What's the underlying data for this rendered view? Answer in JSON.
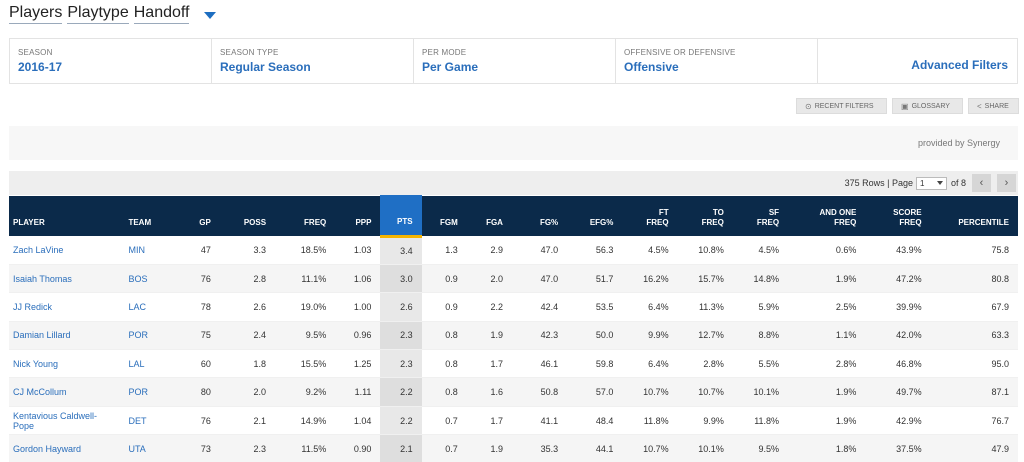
{
  "title": {
    "words": [
      "Players",
      "Playtype",
      "Handoff"
    ]
  },
  "filters": [
    {
      "label": "SEASON",
      "value": "2016-17"
    },
    {
      "label": "SEASON TYPE",
      "value": "Regular Season"
    },
    {
      "label": "PER MODE",
      "value": "Per Game"
    },
    {
      "label": "OFFENSIVE OR DEFENSIVE",
      "value": "Offensive"
    }
  ],
  "advanced_filters": "Advanced Filters",
  "actions": {
    "recent": "RECENT FILTERS",
    "glossary": "GLOSSARY",
    "share": "SHARE"
  },
  "provider": "provided by Synergy",
  "pager": {
    "rows_text": "375 Rows | Page",
    "page": "1",
    "of_text": "of 8",
    "prev": "‹",
    "next": "›"
  },
  "table": {
    "columns": [
      [
        "PLAYER"
      ],
      [
        "TEAM"
      ],
      [
        "GP"
      ],
      [
        "POSS"
      ],
      [
        "FREQ"
      ],
      [
        "PPP"
      ],
      [
        "PTS"
      ],
      [
        "FGM"
      ],
      [
        "FGA"
      ],
      [
        "FG%"
      ],
      [
        "EFG%"
      ],
      [
        "FT",
        "FREQ"
      ],
      [
        "TO",
        "FREQ"
      ],
      [
        "SF",
        "FREQ"
      ],
      [
        "AND ONE",
        "FREQ"
      ],
      [
        "SCORE",
        "FREQ"
      ],
      [
        "PERCENTILE"
      ]
    ],
    "rows": [
      [
        "Zach LaVine",
        "MIN",
        "47",
        "3.3",
        "18.5%",
        "1.03",
        "3.4",
        "1.3",
        "2.9",
        "47.0",
        "56.3",
        "4.5%",
        "10.8%",
        "4.5%",
        "0.6%",
        "43.9%",
        "75.8"
      ],
      [
        "Isaiah Thomas",
        "BOS",
        "76",
        "2.8",
        "11.1%",
        "1.06",
        "3.0",
        "0.9",
        "2.0",
        "47.0",
        "51.7",
        "16.2%",
        "15.7%",
        "14.8%",
        "1.9%",
        "47.2%",
        "80.8"
      ],
      [
        "JJ Redick",
        "LAC",
        "78",
        "2.6",
        "19.0%",
        "1.00",
        "2.6",
        "0.9",
        "2.2",
        "42.4",
        "53.5",
        "6.4%",
        "11.3%",
        "5.9%",
        "2.5%",
        "39.9%",
        "67.9"
      ],
      [
        "Damian Lillard",
        "POR",
        "75",
        "2.4",
        "9.5%",
        "0.96",
        "2.3",
        "0.8",
        "1.9",
        "42.3",
        "50.0",
        "9.9%",
        "12.7%",
        "8.8%",
        "1.1%",
        "42.0%",
        "63.3"
      ],
      [
        "Nick Young",
        "LAL",
        "60",
        "1.8",
        "15.5%",
        "1.25",
        "2.3",
        "0.8",
        "1.7",
        "46.1",
        "59.8",
        "6.4%",
        "2.8%",
        "5.5%",
        "2.8%",
        "46.8%",
        "95.0"
      ],
      [
        "CJ McCollum",
        "POR",
        "80",
        "2.0",
        "9.2%",
        "1.11",
        "2.2",
        "0.8",
        "1.6",
        "50.8",
        "57.0",
        "10.7%",
        "10.7%",
        "10.1%",
        "1.9%",
        "49.7%",
        "87.1"
      ],
      [
        "Kentavious Caldwell-Pope",
        "DET",
        "76",
        "2.1",
        "14.9%",
        "1.04",
        "2.2",
        "0.7",
        "1.7",
        "41.1",
        "48.4",
        "11.8%",
        "9.9%",
        "11.8%",
        "1.9%",
        "42.9%",
        "76.7"
      ],
      [
        "Gordon Hayward",
        "UTA",
        "73",
        "2.3",
        "11.5%",
        "0.90",
        "2.1",
        "0.7",
        "1.9",
        "35.3",
        "44.1",
        "10.7%",
        "10.1%",
        "9.5%",
        "1.8%",
        "37.5%",
        "47.9"
      ]
    ]
  }
}
